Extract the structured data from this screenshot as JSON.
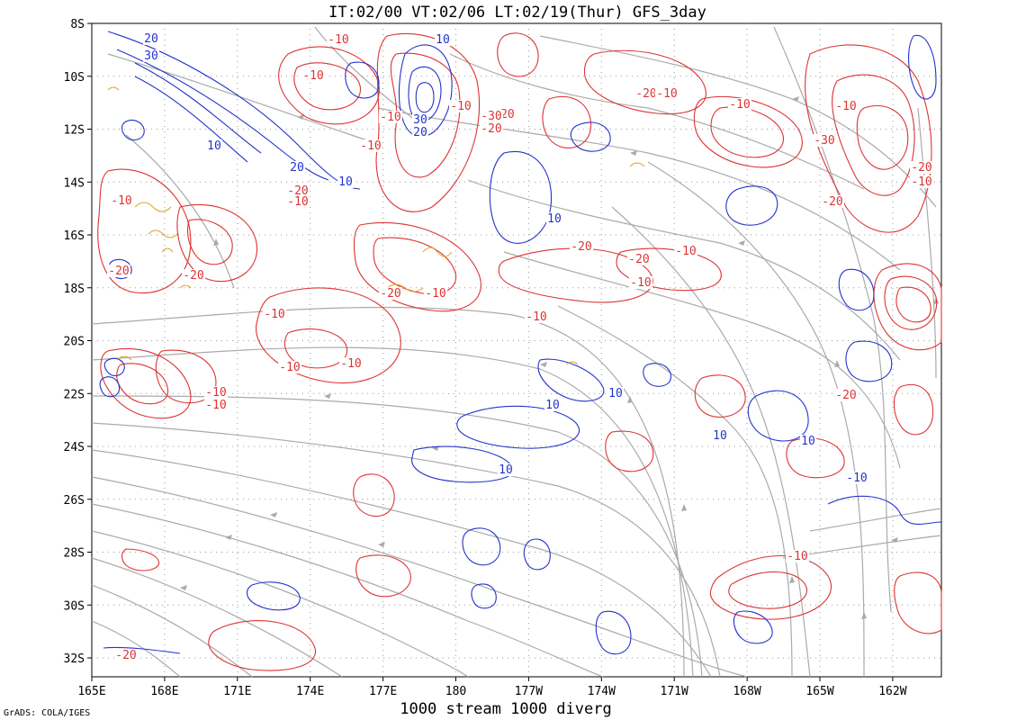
{
  "title": "IT:02/00 VT:02/06 LT:02/19(Thur) GFS_3day",
  "footer": {
    "caption": "1000 stream 1000 diverg",
    "credit": "GrADS: COLA/IGES"
  },
  "lat_labels": [
    "8S",
    "10S",
    "12S",
    "14S",
    "16S",
    "18S",
    "20S",
    "22S",
    "24S",
    "26S",
    "28S",
    "30S",
    "32S"
  ],
  "lon_labels": [
    "165E",
    "168E",
    "171E",
    "174E",
    "177E",
    "180",
    "177W",
    "174W",
    "171W",
    "168W",
    "165W",
    "162W"
  ],
  "contour_labels": [
    {
      "text": "20",
      "color": "blue"
    },
    {
      "text": "30",
      "color": "blue"
    },
    {
      "text": "10",
      "color": "blue"
    },
    {
      "text": "20",
      "color": "blue"
    },
    {
      "text": "10",
      "color": "blue"
    },
    {
      "text": "30",
      "color": "blue"
    },
    {
      "text": "20",
      "color": "blue"
    },
    {
      "text": "10",
      "color": "blue"
    },
    {
      "text": "10",
      "color": "blue"
    },
    {
      "text": "10",
      "color": "blue"
    },
    {
      "text": "10",
      "color": "blue"
    },
    {
      "text": "10",
      "color": "blue"
    },
    {
      "text": "10",
      "color": "blue"
    },
    {
      "text": "10",
      "color": "blue"
    },
    {
      "text": "-10",
      "color": "blue"
    },
    {
      "text": "-20",
      "color": "red"
    },
    {
      "text": "-10",
      "color": "red"
    },
    {
      "text": "-10",
      "color": "red"
    },
    {
      "text": "-20",
      "color": "red"
    },
    {
      "text": "-10",
      "color": "red"
    },
    {
      "text": "-30",
      "color": "red"
    },
    {
      "text": "-20",
      "color": "red"
    },
    {
      "text": "-10",
      "color": "red"
    },
    {
      "text": "-10",
      "color": "red"
    },
    {
      "text": "-20",
      "color": "red"
    },
    {
      "text": "-10",
      "color": "red"
    },
    {
      "text": "-10",
      "color": "red"
    },
    {
      "text": "-20",
      "color": "red"
    },
    {
      "text": "-10",
      "color": "red"
    },
    {
      "text": "-10",
      "color": "red"
    },
    {
      "text": "-10",
      "color": "red"
    },
    {
      "text": "-20",
      "color": "red"
    },
    {
      "text": "-10",
      "color": "red"
    },
    {
      "text": "-20",
      "color": "red"
    },
    {
      "text": "-10",
      "color": "red"
    },
    {
      "text": "-20",
      "color": "red"
    },
    {
      "text": "-10",
      "color": "red"
    },
    {
      "text": "-10",
      "color": "red"
    },
    {
      "text": "-20",
      "color": "red"
    },
    {
      "text": "-10",
      "color": "red"
    },
    {
      "text": "-30",
      "color": "red"
    },
    {
      "text": "-20",
      "color": "red"
    },
    {
      "text": "-10",
      "color": "red"
    },
    {
      "text": "-10",
      "color": "red"
    },
    {
      "text": "-20",
      "color": "red"
    },
    {
      "text": "-10",
      "color": "red"
    },
    {
      "text": "-10",
      "color": "red"
    },
    {
      "text": "-10",
      "color": "red"
    },
    {
      "text": "-20",
      "color": "red"
    },
    {
      "text": "-10",
      "color": "red"
    },
    {
      "text": "-20",
      "color": "red"
    }
  ],
  "colors": {
    "positive_contour": "#2233cc",
    "negative_contour": "#dd3333",
    "streamline": "#aaaaaa",
    "minor_contour": "#e0a020",
    "grid": "#999999",
    "text": "#000000"
  }
}
